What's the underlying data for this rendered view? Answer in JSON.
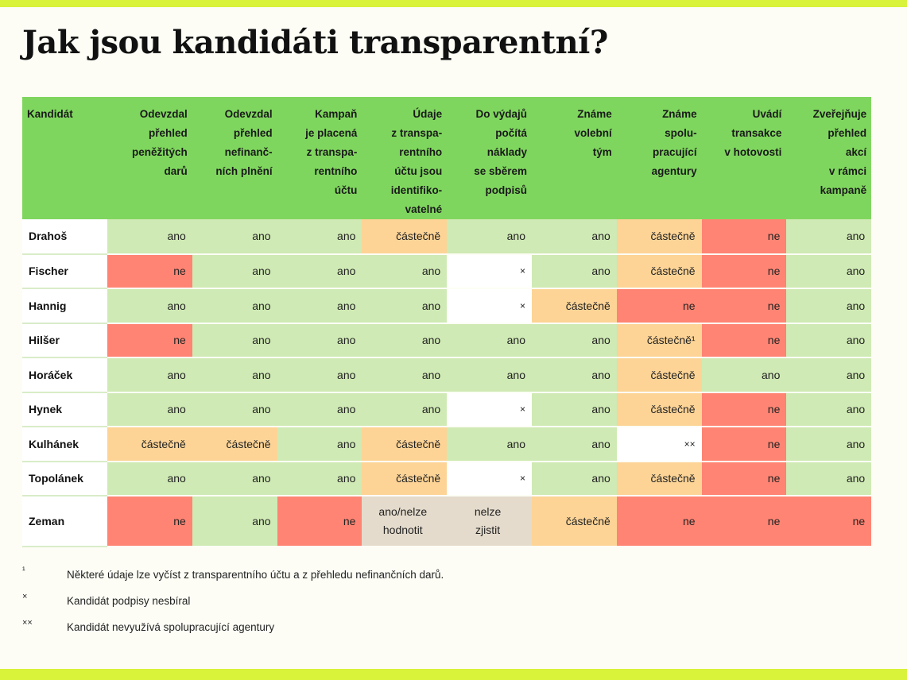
{
  "title": "Jak jsou kandidáti transparentní?",
  "headers": [
    "Kandidát",
    "Odevzdal\npřehled\npeněžitých\ndarů",
    "Odevzdal\npřehled\nnefinanč-\nních plnění",
    "Kampaň\nje placená\nz transpa-\nrentního\núčtu",
    "Údaje\nz transpa-\nrentního\núčtu jsou\nidentifiko-\nvatelné",
    "Do výdajů\npočítá\nnáklady\nse sběrem\npodpisů",
    "Známe\nvolební\ntým",
    "Známe\nspolu-\npracující\nagentury",
    "Uvádí\ntransakce\nv hotovosti",
    "Zveřejňuje\npřehled\nakcí\nv rámci\nkampaně"
  ],
  "rows": [
    {
      "name": "Drahoš",
      "cells": [
        "ano",
        "ano",
        "ano",
        "částečně",
        "ano",
        "ano",
        "částečně",
        "ne",
        "ano"
      ]
    },
    {
      "name": "Fischer",
      "cells": [
        "ne",
        "ano",
        "ano",
        "ano",
        "×",
        "ano",
        "částečně",
        "ne",
        "ano"
      ]
    },
    {
      "name": "Hannig",
      "cells": [
        "ano",
        "ano",
        "ano",
        "ano",
        "×",
        "částečně",
        "ne",
        "ne",
        "ano"
      ]
    },
    {
      "name": "Hilšer",
      "cells": [
        "ne",
        "ano",
        "ano",
        "ano",
        "ano",
        "ano",
        "částečně¹",
        "ne",
        "ano"
      ]
    },
    {
      "name": "Horáček",
      "cells": [
        "ano",
        "ano",
        "ano",
        "ano",
        "ano",
        "ano",
        "částečně",
        "ano",
        "ano"
      ]
    },
    {
      "name": "Hynek",
      "cells": [
        "ano",
        "ano",
        "ano",
        "ano",
        "×",
        "ano",
        "částečně",
        "ne",
        "ano"
      ]
    },
    {
      "name": "Kulhánek",
      "cells": [
        "částečně",
        "částečně",
        "ano",
        "částečně",
        "ano",
        "ano",
        "××",
        "ne",
        "ano"
      ]
    },
    {
      "name": "Topolánek",
      "cells": [
        "ano",
        "ano",
        "ano",
        "částečně",
        "×",
        "ano",
        "částečně",
        "ne",
        "ano"
      ]
    },
    {
      "name": "Zeman",
      "cells": [
        "ne",
        "ano",
        "ne",
        "ano/nelze\nhodnotit",
        "nelze\nzjistit",
        "částečně",
        "ne",
        "ne",
        "ne"
      ]
    }
  ],
  "notes": [
    {
      "mark": "¹",
      "text": "Některé údaje lze vyčíst z transparentního účtu a z přehledu nefinančních darů."
    },
    {
      "mark": "×",
      "text": "Kandidát podpisy nesbíral"
    },
    {
      "mark": "××",
      "text": "Kandidát nevyužívá spolupracující agentury"
    }
  ],
  "colors": {
    "header": "#7fd65e",
    "ano": "#cfeab4",
    "castecne": "#fdd496",
    "ne": "#ff8473",
    "nelze": "#e4dbcc",
    "accent_bar": "#d9f23a"
  }
}
